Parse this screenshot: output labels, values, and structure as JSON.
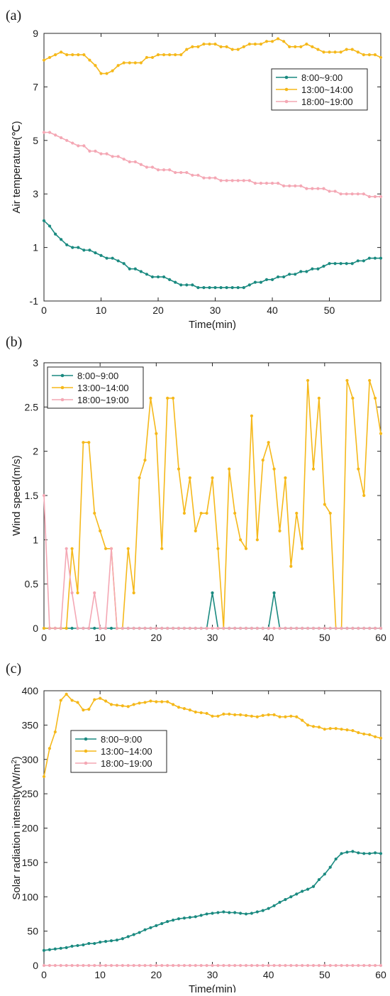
{
  "panels": [
    {
      "label": "(a)",
      "chart_data": {
        "type": "line",
        "xlabel": "Time(min)",
        "ylabel": "Air temperature(℃)",
        "xlim": [
          0,
          59
        ],
        "ylim": [
          -1,
          9
        ],
        "xticks": [
          0,
          10,
          20,
          30,
          40,
          50
        ],
        "yticks": [
          -1,
          1,
          3,
          5,
          7,
          9
        ],
        "legend_position": "top-right",
        "x": [
          0,
          1,
          2,
          3,
          4,
          5,
          6,
          7,
          8,
          9,
          10,
          11,
          12,
          13,
          14,
          15,
          16,
          17,
          18,
          19,
          20,
          21,
          22,
          23,
          24,
          25,
          26,
          27,
          28,
          29,
          30,
          31,
          32,
          33,
          34,
          35,
          36,
          37,
          38,
          39,
          40,
          41,
          42,
          43,
          44,
          45,
          46,
          47,
          48,
          49,
          50,
          51,
          52,
          53,
          54,
          55,
          56,
          57,
          58,
          59
        ],
        "series": [
          {
            "name": "8:00~9:00",
            "color": "#1a8a80",
            "values": [
              2.0,
              1.8,
              1.5,
              1.3,
              1.1,
              1.0,
              1.0,
              0.9,
              0.9,
              0.8,
              0.7,
              0.6,
              0.6,
              0.5,
              0.4,
              0.2,
              0.2,
              0.1,
              0.0,
              -0.1,
              -0.1,
              -0.1,
              -0.2,
              -0.3,
              -0.4,
              -0.4,
              -0.4,
              -0.5,
              -0.5,
              -0.5,
              -0.5,
              -0.5,
              -0.5,
              -0.5,
              -0.5,
              -0.5,
              -0.4,
              -0.3,
              -0.3,
              -0.2,
              -0.2,
              -0.1,
              -0.1,
              0.0,
              0.0,
              0.1,
              0.1,
              0.2,
              0.2,
              0.3,
              0.4,
              0.4,
              0.4,
              0.4,
              0.4,
              0.5,
              0.5,
              0.6,
              0.6,
              0.6
            ]
          },
          {
            "name": "13:00~14:00",
            "color": "#f5b81a",
            "values": [
              8.0,
              8.1,
              8.2,
              8.3,
              8.2,
              8.2,
              8.2,
              8.2,
              8.0,
              7.8,
              7.5,
              7.5,
              7.6,
              7.8,
              7.9,
              7.9,
              7.9,
              7.9,
              8.1,
              8.1,
              8.2,
              8.2,
              8.2,
              8.2,
              8.2,
              8.4,
              8.5,
              8.5,
              8.6,
              8.6,
              8.6,
              8.5,
              8.5,
              8.4,
              8.4,
              8.5,
              8.6,
              8.6,
              8.6,
              8.7,
              8.7,
              8.8,
              8.7,
              8.5,
              8.5,
              8.5,
              8.6,
              8.5,
              8.4,
              8.3,
              8.3,
              8.3,
              8.3,
              8.4,
              8.4,
              8.3,
              8.2,
              8.2,
              8.2,
              8.1
            ]
          },
          {
            "name": "18:00~19:00",
            "color": "#f4a7b4",
            "values": [
              5.3,
              5.3,
              5.2,
              5.1,
              5.0,
              4.9,
              4.8,
              4.8,
              4.6,
              4.6,
              4.5,
              4.5,
              4.4,
              4.4,
              4.3,
              4.2,
              4.2,
              4.1,
              4.0,
              4.0,
              3.9,
              3.9,
              3.9,
              3.8,
              3.8,
              3.8,
              3.7,
              3.7,
              3.6,
              3.6,
              3.6,
              3.5,
              3.5,
              3.5,
              3.5,
              3.5,
              3.5,
              3.4,
              3.4,
              3.4,
              3.4,
              3.4,
              3.3,
              3.3,
              3.3,
              3.3,
              3.2,
              3.2,
              3.2,
              3.2,
              3.1,
              3.1,
              3.0,
              3.0,
              3.0,
              3.0,
              3.0,
              2.9,
              2.9,
              2.9
            ]
          }
        ]
      }
    },
    {
      "label": "(b)",
      "chart_data": {
        "type": "line",
        "xlabel": "Time(min)",
        "ylabel": "Wind speed(m/s)",
        "xlim": [
          0,
          60
        ],
        "ylim": [
          0,
          3
        ],
        "xticks": [
          0,
          10,
          20,
          30,
          40,
          50,
          60
        ],
        "yticks": [
          0,
          0.5,
          1,
          1.5,
          2,
          2.5,
          3
        ],
        "legend_position": "top-left",
        "x": [
          0,
          1,
          2,
          3,
          4,
          5,
          6,
          7,
          8,
          9,
          10,
          11,
          12,
          13,
          14,
          15,
          16,
          17,
          18,
          19,
          20,
          21,
          22,
          23,
          24,
          25,
          26,
          27,
          28,
          29,
          30,
          31,
          32,
          33,
          34,
          35,
          36,
          37,
          38,
          39,
          40,
          41,
          42,
          43,
          44,
          45,
          46,
          47,
          48,
          49,
          50,
          51,
          52,
          53,
          54,
          55,
          56,
          57,
          58,
          59,
          60
        ],
        "series": [
          {
            "name": "8:00~9:00",
            "color": "#1a8a80",
            "values": [
              0,
              0,
              0,
              0,
              0,
              0,
              0,
              0,
              0,
              0,
              0,
              0,
              0,
              0,
              0,
              0,
              0,
              0,
              0,
              0,
              0,
              0,
              0,
              0,
              0,
              0,
              0,
              0,
              0,
              0,
              0.4,
              0,
              0,
              0,
              0,
              0,
              0,
              0,
              0,
              0,
              0,
              0.4,
              0,
              0,
              0,
              0,
              0,
              0,
              0,
              0,
              0,
              0,
              0,
              0,
              0,
              0,
              0,
              0,
              0,
              0,
              0
            ]
          },
          {
            "name": "13:00~14:00",
            "color": "#f5b81a",
            "values": [
              0,
              0,
              0,
              0,
              0,
              0.9,
              0.4,
              2.1,
              2.1,
              1.3,
              1.1,
              0.9,
              0.9,
              0,
              0,
              0.9,
              0.4,
              1.7,
              1.9,
              2.6,
              2.2,
              0.9,
              2.6,
              2.6,
              1.8,
              1.3,
              1.7,
              1.1,
              1.3,
              1.3,
              1.7,
              0.9,
              0,
              1.8,
              1.3,
              1.0,
              0.9,
              2.4,
              1.0,
              1.9,
              2.1,
              1.8,
              1.1,
              1.7,
              0.7,
              1.3,
              0.9,
              2.8,
              1.8,
              2.6,
              1.4,
              1.3,
              0,
              0,
              2.8,
              2.6,
              1.8,
              1.5,
              2.8,
              2.6,
              2.2
            ]
          },
          {
            "name": "18:00~19:00",
            "color": "#f4a7b4",
            "values": [
              1.5,
              0,
              0,
              0,
              0.9,
              0.4,
              0,
              0,
              0,
              0.4,
              0,
              0,
              0.9,
              0,
              0,
              0,
              0,
              0,
              0,
              0,
              0,
              0,
              0,
              0,
              0,
              0,
              0,
              0,
              0,
              0,
              0,
              0,
              0,
              0,
              0,
              0,
              0,
              0,
              0,
              0,
              0,
              0,
              0,
              0,
              0,
              0,
              0,
              0,
              0,
              0,
              0,
              0,
              0,
              0,
              0,
              0,
              0,
              0,
              0,
              0,
              0
            ]
          }
        ]
      }
    },
    {
      "label": "(c)",
      "chart_data": {
        "type": "line",
        "xlabel": "Time(min)",
        "ylabel": "Solar radiation intensity(W/m",
        "ylabel_superscript": "2",
        "ylabel_suffix": ")",
        "xlim": [
          0,
          60
        ],
        "ylim": [
          0,
          400
        ],
        "xticks": [
          0,
          10,
          20,
          30,
          40,
          50,
          60
        ],
        "yticks": [
          0,
          50,
          100,
          150,
          200,
          250,
          300,
          350,
          400
        ],
        "legend_position": "upper-left",
        "x": [
          0,
          1,
          2,
          3,
          4,
          5,
          6,
          7,
          8,
          9,
          10,
          11,
          12,
          13,
          14,
          15,
          16,
          17,
          18,
          19,
          20,
          21,
          22,
          23,
          24,
          25,
          26,
          27,
          28,
          29,
          30,
          31,
          32,
          33,
          34,
          35,
          36,
          37,
          38,
          39,
          40,
          41,
          42,
          43,
          44,
          45,
          46,
          47,
          48,
          49,
          50,
          51,
          52,
          53,
          54,
          55,
          56,
          57,
          58,
          59,
          60
        ],
        "series": [
          {
            "name": "8:00~9:00",
            "color": "#1a8a80",
            "values": [
              22,
              23,
              24,
              25,
              26,
              28,
              29,
              30,
              32,
              32,
              34,
              35,
              36,
              37,
              39,
              42,
              45,
              48,
              52,
              55,
              58,
              61,
              64,
              66,
              68,
              69,
              70,
              71,
              73,
              75,
              76,
              77,
              78,
              77,
              77,
              76,
              75,
              76,
              78,
              80,
              83,
              87,
              92,
              96,
              100,
              104,
              108,
              111,
              115,
              125,
              133,
              143,
              155,
              163,
              165,
              166,
              164,
              163,
              163,
              164,
              163
            ]
          },
          {
            "name": "13:00~14:00",
            "color": "#f5b81a",
            "values": [
              275,
              316,
              340,
              386,
              395,
              386,
              383,
              372,
              373,
              387,
              389,
              385,
              380,
              379,
              378,
              377,
              380,
              382,
              383,
              385,
              384,
              384,
              384,
              380,
              376,
              374,
              372,
              369,
              368,
              367,
              363,
              363,
              366,
              366,
              365,
              365,
              364,
              363,
              362,
              364,
              365,
              365,
              362,
              362,
              363,
              362,
              357,
              350,
              348,
              347,
              344,
              345,
              345,
              344,
              343,
              342,
              339,
              337,
              336,
              333,
              331
            ]
          },
          {
            "name": "18:00~19:00",
            "color": "#f4a7b4",
            "values": [
              0,
              0,
              0,
              0,
              0,
              0,
              0,
              0,
              0,
              0,
              0,
              0,
              0,
              0,
              0,
              0,
              0,
              0,
              0,
              0,
              0,
              0,
              0,
              0,
              0,
              0,
              0,
              0,
              0,
              0,
              0,
              0,
              0,
              0,
              0,
              0,
              0,
              0,
              0,
              0,
              0,
              0,
              0,
              0,
              0,
              0,
              0,
              0,
              0,
              0,
              0,
              0,
              0,
              0,
              0,
              0,
              0,
              0,
              0,
              0,
              0
            ]
          }
        ]
      }
    }
  ]
}
